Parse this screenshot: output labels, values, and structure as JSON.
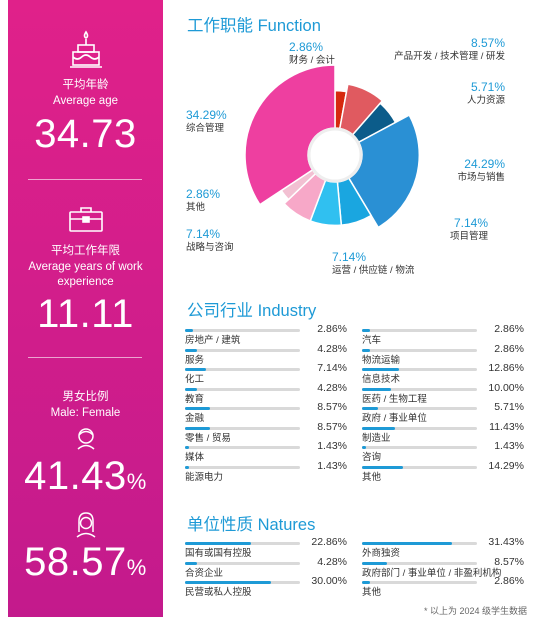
{
  "summary": {
    "avg_age_cn": "平均年龄",
    "avg_age_en": "Average age",
    "avg_age": "34.73",
    "avg_work_cn": "平均工作年限",
    "avg_work_en": "Average years of work experience",
    "avg_work": "11.11",
    "gender_cn": "男女比例",
    "gender_en": "Male: Female",
    "male": "41.43",
    "female": "58.57",
    "pct_sign": "%"
  },
  "titles": {
    "function": "工作职能 Function",
    "industry": "公司行业 Industry",
    "natures": "单位性质 Natures"
  },
  "footnote": "* 以上为 2024 级学生数据",
  "colors": {
    "accent": "#1e9ad6",
    "magenta": "#e0218a",
    "track": "#d9d9d9"
  },
  "chart_data": [
    {
      "type": "pie",
      "title": "工作职能 Function",
      "slices": [
        {
          "label": "财务 / 会计",
          "value": 2.86,
          "display": "2.86%",
          "color": "#d6290f"
        },
        {
          "label": "产品开发 / 技术管理 / 研发",
          "value": 8.57,
          "display": "8.57%",
          "color": "#e05a60"
        },
        {
          "label": "人力资源",
          "value": 5.71,
          "display": "5.71%",
          "color": "#0c5c8a"
        },
        {
          "label": "市场与销售",
          "value": 24.29,
          "display": "24.29%",
          "color": "#2a90d4"
        },
        {
          "label": "项目管理",
          "value": 7.14,
          "display": "7.14%",
          "color": "#1aa6e0"
        },
        {
          "label": "运营 / 供应链 / 物流",
          "value": 7.14,
          "display": "7.14%",
          "color": "#30c0f0"
        },
        {
          "label": "战略与咨询",
          "value": 7.14,
          "display": "7.14%",
          "color": "#f7a8c8"
        },
        {
          "label": "其他",
          "value": 2.86,
          "display": "2.86%",
          "color": "#f2c0d2"
        },
        {
          "label": "综合管理",
          "value": 34.29,
          "display": "34.29%",
          "color": "#ee3fa0"
        }
      ]
    },
    {
      "type": "bar",
      "title": "公司行业 Industry",
      "left": [
        {
          "label": "房地产 / 建筑",
          "value": 2.86,
          "display": "2.86%"
        },
        {
          "label": "服务",
          "value": 4.28,
          "display": "4.28%"
        },
        {
          "label": "化工",
          "value": 7.14,
          "display": "7.14%"
        },
        {
          "label": "教育",
          "value": 4.28,
          "display": "4.28%"
        },
        {
          "label": "金融",
          "value": 8.57,
          "display": "8.57%"
        },
        {
          "label": "零售 / 贸易",
          "value": 8.57,
          "display": "8.57%"
        },
        {
          "label": "媒体",
          "value": 1.43,
          "display": "1.43%"
        },
        {
          "label": "能源电力",
          "value": 1.43,
          "display": "1.43%"
        }
      ],
      "right": [
        {
          "label": "汽车",
          "value": 2.86,
          "display": "2.86%"
        },
        {
          "label": "物流运输",
          "value": 2.86,
          "display": "2.86%"
        },
        {
          "label": "信息技术",
          "value": 12.86,
          "display": "12.86%"
        },
        {
          "label": "医药 / 生物工程",
          "value": 10.0,
          "display": "10.00%"
        },
        {
          "label": "政府 / 事业单位",
          "value": 5.71,
          "display": "5.71%"
        },
        {
          "label": "制造业",
          "value": 11.43,
          "display": "11.43%"
        },
        {
          "label": "咨询",
          "value": 1.43,
          "display": "1.43%"
        },
        {
          "label": "其他",
          "value": 14.29,
          "display": "14.29%"
        }
      ],
      "max": 40
    },
    {
      "type": "bar",
      "title": "单位性质 Natures",
      "left": [
        {
          "label": "国有或国有控股",
          "value": 22.86,
          "display": "22.86%"
        },
        {
          "label": "合资企业",
          "value": 4.28,
          "display": "4.28%"
        },
        {
          "label": "民营或私人控股",
          "value": 30.0,
          "display": "30.00%"
        }
      ],
      "right": [
        {
          "label": "外商独资",
          "value": 31.43,
          "display": "31.43%"
        },
        {
          "label": "政府部门 / 事业单位 / 非盈利机构",
          "value": 8.57,
          "display": "8.57%"
        },
        {
          "label": "其他",
          "value": 2.86,
          "display": "2.86%"
        }
      ],
      "max": 40
    }
  ]
}
